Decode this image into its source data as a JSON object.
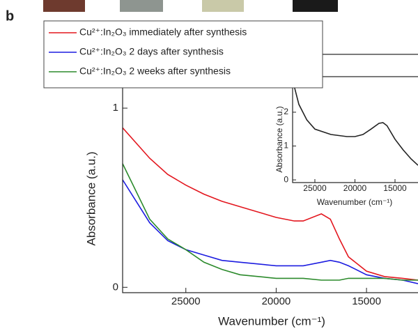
{
  "panel_label": "b",
  "chart_data": [
    {
      "type": "line",
      "x_label": "Wavenumber (cm⁻¹)",
      "y_label": "Absorbance (a.u.)",
      "x": [
        28500,
        27000,
        26000,
        25000,
        24000,
        23000,
        22000,
        20000,
        19000,
        18500,
        17500,
        17000,
        16500,
        16000,
        15000,
        14000,
        13000,
        12150
      ],
      "xlim": [
        28500,
        12150
      ],
      "xticks": [
        25000,
        20000,
        15000
      ],
      "ylim": [
        -0.03,
        1.3
      ],
      "yticks": [
        0,
        1
      ],
      "legend": "upper left",
      "series": [
        {
          "name": "Cu²⁺:In₂O₃ immediately after synthesis",
          "color": "#e3161e",
          "values": [
            0.89,
            0.72,
            0.63,
            0.57,
            0.52,
            0.48,
            0.45,
            0.39,
            0.37,
            0.37,
            0.41,
            0.38,
            0.27,
            0.17,
            0.09,
            0.06,
            0.05,
            0.04
          ]
        },
        {
          "name": "Cu²⁺:In₂O₃ 2 days after synthesis",
          "color": "#1c1ce0",
          "values": [
            0.6,
            0.36,
            0.26,
            0.21,
            0.18,
            0.15,
            0.14,
            0.12,
            0.12,
            0.12,
            0.14,
            0.15,
            0.14,
            0.12,
            0.07,
            0.05,
            0.04,
            0.02
          ]
        },
        {
          "name": "Cu²⁺:In₂O₃ 2 weeks after synthesis",
          "color": "#2b8a2b",
          "values": [
            0.69,
            0.38,
            0.27,
            0.21,
            0.14,
            0.1,
            0.07,
            0.05,
            0.05,
            0.05,
            0.04,
            0.04,
            0.04,
            0.05,
            0.05,
            0.05,
            0.04,
            0.04
          ]
        }
      ]
    },
    {
      "type": "line",
      "x_label": "Wavenumber (cm⁻¹)",
      "y_label": "Absorbance (a.u.)",
      "x": [
        27780,
        27000,
        26000,
        25000,
        23000,
        21000,
        20000,
        19000,
        18000,
        17000,
        16500,
        16000,
        15000,
        14000,
        13000,
        12130
      ],
      "xlim": [
        27780,
        12130
      ],
      "xticks": [
        25000,
        20000,
        15000
      ],
      "ylim": [
        -0.08,
        3.05
      ],
      "yticks": [
        0,
        1,
        2
      ],
      "series": [
        {
          "color": "#222222",
          "values": [
            2.95,
            2.23,
            1.77,
            1.5,
            1.34,
            1.28,
            1.28,
            1.34,
            1.5,
            1.67,
            1.69,
            1.6,
            1.2,
            0.89,
            0.62,
            0.43
          ]
        }
      ]
    }
  ]
}
